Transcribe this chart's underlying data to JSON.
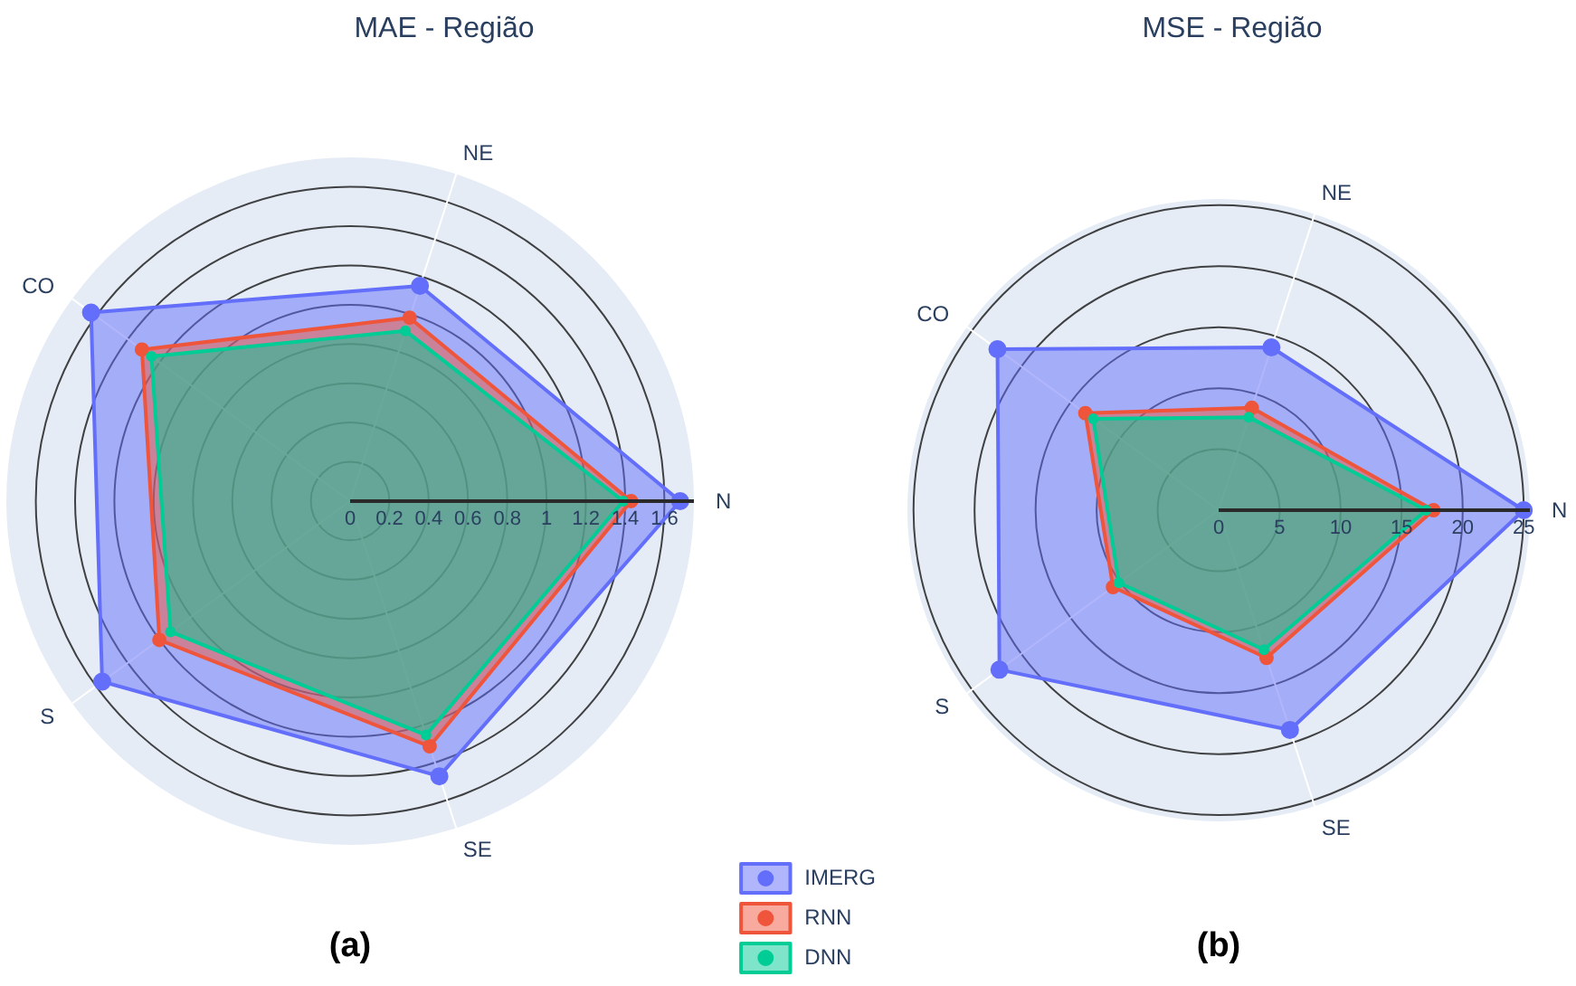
{
  "chart_data": [
    {
      "type": "radar",
      "title": "MAE - Região",
      "categories": [
        "NE",
        "N",
        "SE",
        "S",
        "CO"
      ],
      "ylim": [
        0,
        1.75
      ],
      "yticks": [
        0,
        0.2,
        0.4,
        0.6,
        0.8,
        1,
        1.2,
        1.4,
        1.6
      ],
      "grid": true,
      "marker": "circle",
      "legend": "bottom right",
      "annotations": [
        "(a)"
      ],
      "series": [
        {
          "name": "IMERG",
          "color": "#636efa",
          "values": [
            1.15,
            1.68,
            1.47,
            1.56,
            1.63
          ]
        },
        {
          "name": "RNN",
          "color": "#ef553b",
          "values": [
            0.98,
            1.43,
            1.31,
            1.2,
            1.31
          ]
        },
        {
          "name": "DNN",
          "color": "#00cc96",
          "values": [
            0.91,
            1.39,
            1.25,
            1.13,
            1.25
          ]
        }
      ]
    },
    {
      "type": "radar",
      "title": "MSE - Região",
      "categories": [
        "NE",
        "N",
        "SE",
        "S",
        "CO"
      ],
      "ylim": [
        0,
        25.5
      ],
      "yticks": [
        0,
        5,
        10,
        15,
        20,
        25
      ],
      "grid": true,
      "marker": "circle",
      "annotations": [
        "(b)"
      ],
      "series": [
        {
          "color": "#636efa",
          "values": [
            14,
            25,
            18.9,
            22.2,
            22.4
          ]
        },
        {
          "color": "#ef553b",
          "values": [
            8.8,
            17.6,
            12.7,
            10.7,
            13.5
          ]
        },
        {
          "color": "#00cc96",
          "values": [
            8,
            17,
            12,
            10.1,
            12.7
          ]
        }
      ]
    }
  ]
}
